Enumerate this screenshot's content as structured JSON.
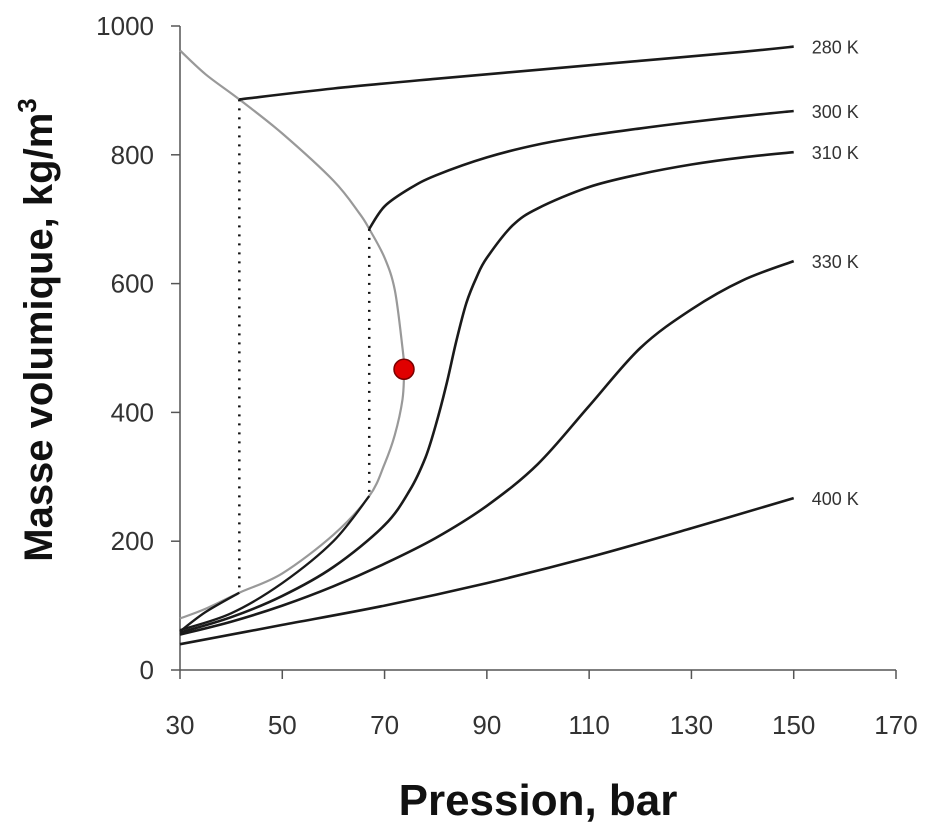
{
  "chart_data": {
    "type": "line",
    "title": "",
    "xlabel": "Pression, bar",
    "ylabel_main": "Masse volumique, kg/m",
    "ylabel_sup": "3",
    "xlim": [
      30,
      170
    ],
    "ylim": [
      0,
      1000
    ],
    "xticks": [
      30,
      50,
      70,
      90,
      110,
      130,
      150,
      170
    ],
    "yticks": [
      0,
      200,
      400,
      600,
      800,
      1000
    ],
    "grid": false,
    "colors": {
      "isotherm": "#1a1a1a",
      "saturation": "#999999",
      "tie_line": "#111111",
      "critical_point": "#e00000",
      "critical_point_edge": "#7a0000"
    },
    "series": [
      {
        "name": "280 K",
        "x": [
          41.6,
          60,
          80,
          100,
          120,
          140,
          150
        ],
        "y": [
          886,
          903,
          918,
          932,
          946,
          960,
          968
        ]
      },
      {
        "name": "300 K",
        "x": [
          67,
          70,
          75,
          80,
          90,
          100,
          110,
          120,
          130,
          140,
          150
        ],
        "y": [
          685,
          720,
          748,
          768,
          796,
          816,
          830,
          841,
          851,
          860,
          868
        ]
      },
      {
        "name": "310 K",
        "x": [
          30,
          40,
          50,
          60,
          70,
          75,
          78,
          80,
          82,
          84,
          86,
          88,
          90,
          95,
          100,
          110,
          120,
          130,
          140,
          150
        ],
        "y": [
          58,
          82,
          115,
          160,
          225,
          280,
          330,
          380,
          440,
          510,
          570,
          610,
          640,
          690,
          717,
          750,
          770,
          785,
          796,
          804
        ]
      },
      {
        "name": "330 K",
        "x": [
          30,
          40,
          50,
          60,
          70,
          80,
          90,
          100,
          110,
          120,
          130,
          140,
          150
        ],
        "y": [
          55,
          75,
          100,
          130,
          165,
          205,
          255,
          320,
          410,
          500,
          560,
          605,
          635
        ]
      },
      {
        "name": "400 K",
        "x": [
          30,
          50,
          70,
          90,
          110,
          130,
          150
        ],
        "y": [
          40,
          70,
          100,
          135,
          175,
          220,
          267
        ]
      }
    ],
    "isotherm_bubble_branches": [
      {
        "x": [
          30,
          35,
          41.6
        ],
        "y": [
          60,
          90,
          120
        ]
      },
      {
        "x": [
          30,
          40,
          50,
          60,
          67
        ],
        "y": [
          62,
          88,
          135,
          200,
          270
        ]
      }
    ],
    "saturation_curve": {
      "x": [
        30,
        35,
        41.6,
        50,
        60,
        65,
        67,
        70,
        72,
        73.5,
        73.8,
        73.5,
        72,
        70,
        67,
        60,
        50,
        41.6,
        35,
        30
      ],
      "y": [
        962,
        925,
        886,
        833,
        760,
        710,
        685,
        640,
        590,
        500,
        467,
        420,
        365,
        320,
        270,
        210,
        150,
        120,
        95,
        80
      ]
    },
    "tie_lines": [
      {
        "x": [
          41.6,
          41.6
        ],
        "y": [
          886,
          120
        ]
      },
      {
        "x": [
          67,
          67
        ],
        "y": [
          685,
          270
        ]
      }
    ],
    "critical_point": {
      "x": 73.8,
      "y": 467
    }
  }
}
